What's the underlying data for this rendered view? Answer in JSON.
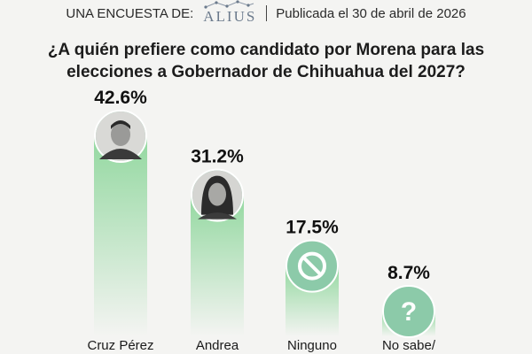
{
  "header": {
    "survey_label": "UNA ENCUESTA DE:",
    "brand": "ALIUS",
    "published": "Publicada el 30 de abril de 2026"
  },
  "question": {
    "line1": "¿A quién prefiere como candidato por Morena para las",
    "line2": "elecciones a Gobernador de Chihuahua del 2027?"
  },
  "chart_data": {
    "type": "bar",
    "title": "¿A quién prefiere como candidato por Morena para las elecciones a Gobernador de Chihuahua del 2027?",
    "categories": [
      "Cruz Pérez",
      "Andrea",
      "Ninguno",
      "No sabe/"
    ],
    "values": [
      42.6,
      31.2,
      17.5,
      8.7
    ],
    "value_labels": [
      "42.6%",
      "31.2%",
      "17.5%",
      "8.7%"
    ],
    "markers": [
      "man-portrait-photo",
      "woman-portrait-photo",
      "prohibited-icon",
      "question-mark-icon"
    ],
    "ylim": [
      0,
      50
    ],
    "grid": false,
    "legend": "none",
    "colors": {
      "bar_top": "#93d8a0",
      "bar_bottom": "#f4f4f2",
      "circle": "#8ccaa9",
      "circle_stroke": "#ffffff"
    }
  }
}
